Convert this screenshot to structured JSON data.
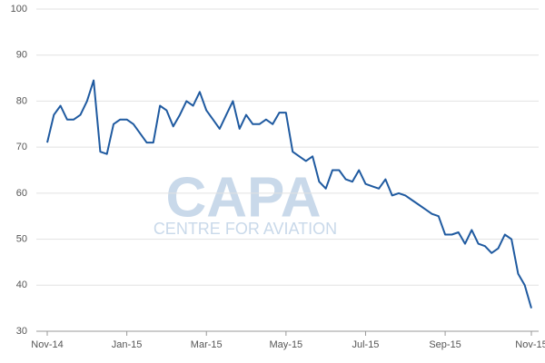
{
  "chart_data": {
    "type": "line",
    "color": "#1f5aa0",
    "grid": true,
    "categories": [
      "Nov-14",
      null,
      null,
      null,
      null,
      null,
      null,
      null,
      null,
      null,
      null,
      null,
      "Jan-15",
      null,
      null,
      null,
      null,
      null,
      null,
      null,
      null,
      null,
      null,
      null,
      "Mar-15",
      null,
      null,
      null,
      null,
      null,
      null,
      null,
      null,
      null,
      null,
      null,
      "May-15",
      null,
      null,
      null,
      null,
      null,
      null,
      null,
      null,
      null,
      null,
      null,
      "Jul-15",
      null,
      null,
      null,
      null,
      null,
      null,
      null,
      null,
      null,
      null,
      null,
      "Sep-15",
      null,
      null,
      null,
      null,
      null,
      null,
      null,
      null,
      null,
      null,
      null,
      null,
      "Nov-15"
    ],
    "values": [
      71,
      77,
      79,
      76,
      76,
      77,
      80,
      84.5,
      69,
      68.5,
      75,
      76,
      76,
      75,
      73,
      71,
      71,
      79,
      78,
      74.5,
      77,
      80,
      79,
      82,
      78,
      76,
      74,
      77,
      80,
      74,
      77,
      75,
      75,
      76,
      75,
      77.5,
      77.5,
      69,
      68,
      67,
      68,
      62.5,
      61,
      65,
      65,
      63,
      62.5,
      65,
      62,
      61.5,
      61,
      63,
      59.5,
      60,
      59.5,
      58.5,
      57.5,
      56.5,
      55.5,
      55,
      51,
      51,
      51.5,
      49,
      52,
      49,
      48.5,
      47,
      48,
      51,
      50,
      42.5,
      40,
      35
    ],
    "ylim": [
      30,
      100
    ],
    "yticks": [
      30,
      40,
      50,
      60,
      70,
      80,
      90,
      100
    ]
  },
  "watermark": {
    "title": "CAPA",
    "subtitle": "CENTRE FOR AVIATION"
  }
}
